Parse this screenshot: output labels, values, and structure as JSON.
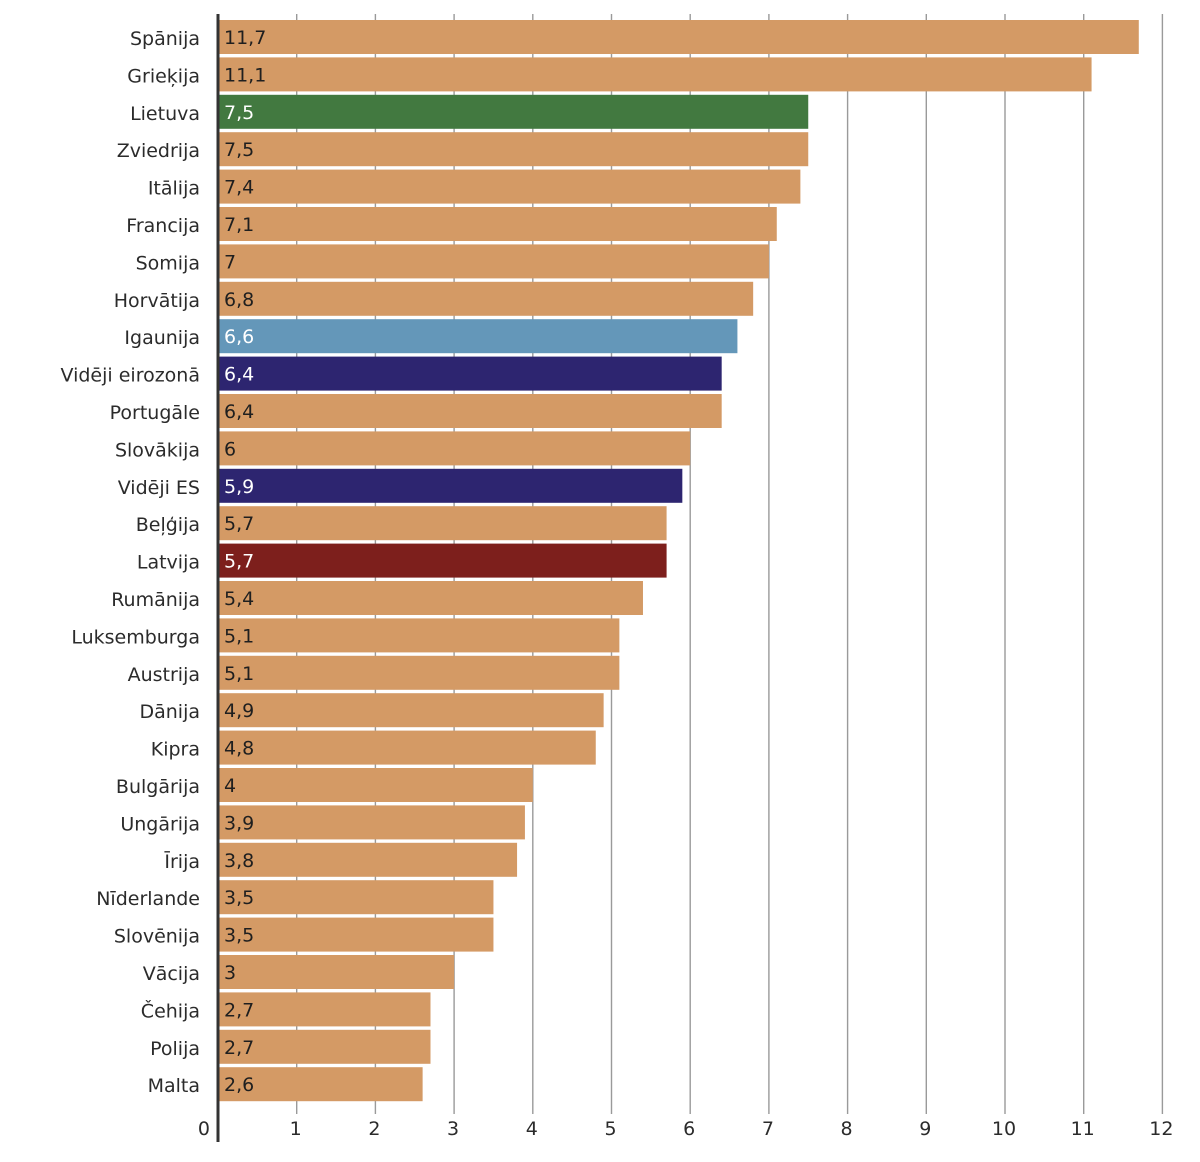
{
  "chart_data": {
    "type": "bar",
    "orientation": "horizontal",
    "title": "",
    "xlabel": "",
    "ylabel": "",
    "xlim": [
      0,
      12
    ],
    "x_ticks": [
      "0",
      "1",
      "2",
      "3",
      "4",
      "5",
      "6",
      "7",
      "8",
      "9",
      "10",
      "11",
      "12"
    ],
    "grid": true,
    "categories": [
      "Spānija",
      "Grieķija",
      "Lietuva",
      "Zviedrija",
      "Itālija",
      "Francija",
      "Somija",
      "Horvātija",
      "Igaunija",
      "Vidēji eirozonā",
      "Portugāle",
      "Slovākija",
      "Vidēji ES",
      "Beļģija",
      "Latvija",
      "Rumānija",
      "Luksemburga",
      "Austrija",
      "Dānija",
      "Kipra",
      "Bulgārija",
      "Ungārija",
      "Īrija",
      "Nīderlande",
      "Slovēnija",
      "Vācija",
      "Čehija",
      "Polija",
      "Malta"
    ],
    "values": [
      11.7,
      11.1,
      7.5,
      7.5,
      7.4,
      7.1,
      7,
      6.8,
      6.6,
      6.4,
      6.4,
      6,
      5.9,
      5.7,
      5.7,
      5.4,
      5.1,
      5.1,
      4.9,
      4.8,
      4,
      3.9,
      3.8,
      3.5,
      3.5,
      3,
      2.7,
      2.7,
      2.6
    ],
    "value_labels": [
      "11,7",
      "11,1",
      "7,5",
      "7,5",
      "7,4",
      "7,1",
      "7",
      "6,8",
      "6,6",
      "6,4",
      "6,4",
      "6",
      "5,9",
      "5,7",
      "5,7",
      "5,4",
      "5,1",
      "5,1",
      "4,9",
      "4,8",
      "4",
      "3,9",
      "3,8",
      "3,5",
      "3,5",
      "3",
      "2,7",
      "2,7",
      "2,6"
    ],
    "colors": {
      "default": "#d49a65",
      "Lietuva": "#427940",
      "Igaunija": "#6497b9",
      "Vidēji eirozonā": "#2d2570",
      "Vidēji ES": "#2d2570",
      "Latvija": "#7d1f1c"
    },
    "label_colors": {
      "default": "#1f1f1f",
      "light": "#ffffff"
    }
  }
}
